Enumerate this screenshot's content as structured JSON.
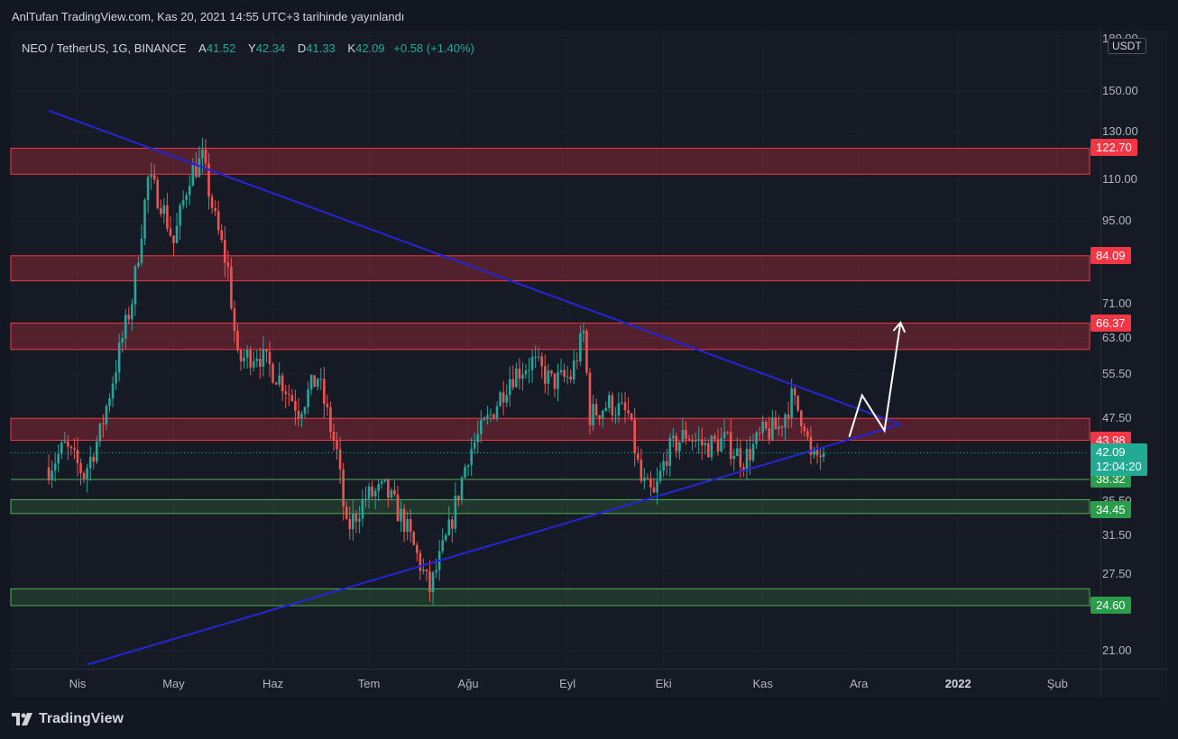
{
  "header": {
    "publish_note": "AnlTufan TradingView.com, Kas 20, 2021 14:55 UTC+3 tarihinde yayınlandı"
  },
  "legend": {
    "symbol": "NEO / TetherUS, 1G, BINANCE",
    "open_label": "A",
    "open": "41.52",
    "high_label": "Y",
    "high": "42.34",
    "low_label": "D",
    "low": "41.33",
    "close_label": "K",
    "close": "42.09",
    "change": "+0.58 (+1.40%)"
  },
  "currency_button": "USDT",
  "footer": {
    "brand": "TradingView"
  },
  "colors": {
    "background": "#131722",
    "up": "#26a69a",
    "down": "#ef5350",
    "resistance": "#f23645",
    "support": "#4caf50",
    "trendline": "#2424d8"
  },
  "chart_data": {
    "type": "candlestick",
    "scale": "log",
    "y_ticks": [
      "180.00",
      "150.00",
      "130.00",
      "110.00",
      "95.00",
      "71.00",
      "63.00",
      "55.50",
      "47.50",
      "35.50",
      "31.50",
      "27.50",
      "21.00"
    ],
    "x_ticks": [
      {
        "label": "Nis",
        "bold": false
      },
      {
        "label": "May",
        "bold": false
      },
      {
        "label": "Haz",
        "bold": false
      },
      {
        "label": "Tem",
        "bold": false
      },
      {
        "label": "Ağu",
        "bold": false
      },
      {
        "label": "Eyl",
        "bold": false
      },
      {
        "label": "Eki",
        "bold": false
      },
      {
        "label": "Kas",
        "bold": false
      },
      {
        "label": "Ara",
        "bold": false
      },
      {
        "label": "2022",
        "bold": true
      },
      {
        "label": "Şub",
        "bold": false
      }
    ],
    "resistance_zones": [
      {
        "label": "122.70",
        "high": 122.7,
        "low": 112.0
      },
      {
        "label": "84.09",
        "high": 84.09,
        "low": 77.0
      },
      {
        "label": "66.37",
        "high": 66.37,
        "low": 60.5
      },
      {
        "label": "43.98",
        "high": 47.5,
        "low": 43.98
      }
    ],
    "support_zones": [
      {
        "label": "34.45",
        "high": 35.7,
        "low": 34.0
      },
      {
        "label": "24.60",
        "high": 26.1,
        "low": 24.6
      }
    ],
    "support_line": {
      "label": "38.32",
      "value": 38.32
    },
    "last_price": {
      "value": "42.09",
      "countdown": "12:04:20"
    },
    "trendlines": [
      {
        "name": "descending",
        "from": [
          "2021-03-23",
          140
        ],
        "to": [
          "2021-12-14",
          46.5
        ]
      },
      {
        "name": "ascending",
        "from": [
          "2021-04-04",
          20
        ],
        "to": [
          "2021-12-14",
          46.5
        ]
      }
    ],
    "projection_path": [
      [
        "2021-11-28",
        44.5
      ],
      [
        "2021-12-02",
        51.5
      ],
      [
        "2021-12-09",
        45.5
      ],
      [
        "2021-12-14",
        66.5
      ]
    ],
    "candles_close_path": [
      [
        "2021-03-23",
        40
      ],
      [
        "2021-03-28",
        43
      ],
      [
        "2021-04-03",
        39
      ],
      [
        "2021-04-08",
        45
      ],
      [
        "2021-04-14",
        60
      ],
      [
        "2021-04-18",
        72
      ],
      [
        "2021-04-23",
        110
      ],
      [
        "2021-04-27",
        102
      ],
      [
        "2021-05-01",
        88
      ],
      [
        "2021-05-06",
        112
      ],
      [
        "2021-05-10",
        118
      ],
      [
        "2021-05-14",
        95
      ],
      [
        "2021-05-18",
        80
      ],
      [
        "2021-05-21",
        58
      ],
      [
        "2021-05-27",
        60
      ],
      [
        "2021-06-04",
        54
      ],
      [
        "2021-06-09",
        49
      ],
      [
        "2021-06-15",
        55
      ],
      [
        "2021-06-21",
        42
      ],
      [
        "2021-06-24",
        32
      ],
      [
        "2021-06-30",
        36
      ],
      [
        "2021-07-06",
        37
      ],
      [
        "2021-07-12",
        33
      ],
      [
        "2021-07-20",
        26
      ],
      [
        "2021-07-26",
        32
      ],
      [
        "2021-08-01",
        42
      ],
      [
        "2021-08-08",
        48
      ],
      [
        "2021-08-14",
        55
      ],
      [
        "2021-08-21",
        58
      ],
      [
        "2021-08-27",
        54
      ],
      [
        "2021-09-02",
        55
      ],
      [
        "2021-09-06",
        64
      ],
      [
        "2021-09-08",
        48
      ],
      [
        "2021-09-14",
        50
      ],
      [
        "2021-09-20",
        48
      ],
      [
        "2021-09-24",
        38
      ],
      [
        "2021-09-28",
        36
      ],
      [
        "2021-10-02",
        42
      ],
      [
        "2021-10-08",
        45
      ],
      [
        "2021-10-14",
        43
      ],
      [
        "2021-10-20",
        44
      ],
      [
        "2021-10-26",
        41
      ],
      [
        "2021-11-01",
        45
      ],
      [
        "2021-11-06",
        46
      ],
      [
        "2021-11-10",
        51
      ],
      [
        "2021-11-14",
        47
      ],
      [
        "2021-11-16",
        41
      ],
      [
        "2021-11-20",
        42.09
      ]
    ]
  }
}
